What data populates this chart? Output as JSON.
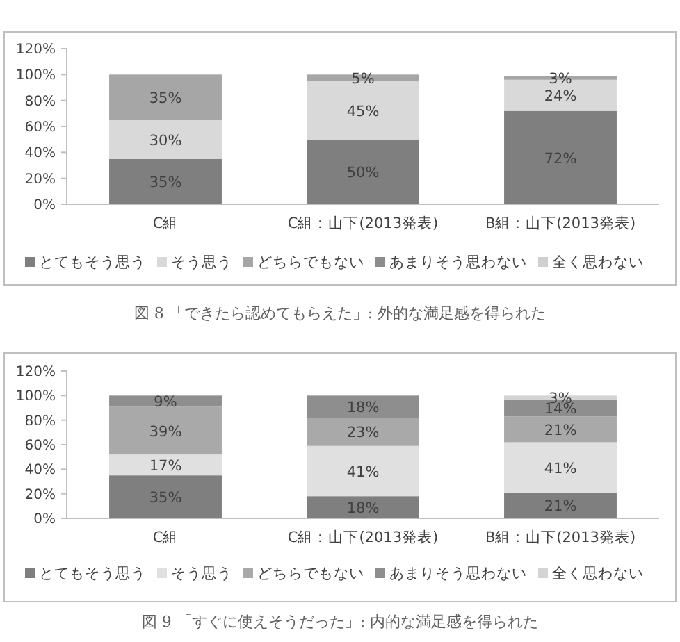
{
  "chart_data": [
    {
      "type": "bar",
      "stacked": true,
      "legend": "bottom",
      "grid": false,
      "categories": [
        "C組",
        "C組：山下(2013発表)",
        "B組：山下(2013発表)"
      ],
      "ylim": [
        0,
        120
      ],
      "yticks": [
        {
          "value": 0,
          "label": "0%"
        },
        {
          "value": 20,
          "label": "20%"
        },
        {
          "value": 40,
          "label": "40%"
        },
        {
          "value": 60,
          "label": "60%"
        },
        {
          "value": 80,
          "label": "80%"
        },
        {
          "value": 100,
          "label": "100%"
        },
        {
          "value": 120,
          "label": "120%"
        }
      ],
      "series": [
        {
          "name": "とてもそう思う",
          "color": "#7f7f7f",
          "values": [
            35,
            50,
            72
          ],
          "value_labels": [
            "35%",
            "50%",
            "72%"
          ]
        },
        {
          "name": "そう思う",
          "color": "#d9d9d9",
          "values": [
            30,
            45,
            24
          ],
          "value_labels": [
            "30%",
            "45%",
            "24%"
          ]
        },
        {
          "name": "どちらでもない",
          "color": "#a6a6a6",
          "values": [
            35,
            5,
            3
          ],
          "value_labels": [
            "35%",
            "5%",
            "3%"
          ]
        },
        {
          "name": "あまりそう思わない",
          "color": "#8c8c8c",
          "values": [
            null,
            null,
            null
          ]
        },
        {
          "name": "全く思わない",
          "color": "#d0d0d0",
          "values": [
            null,
            null,
            null
          ]
        }
      ],
      "annotations": [
        "図 8 「できたら認めてもらえた」: 外的な満足感を得られた"
      ]
    },
    {
      "type": "bar",
      "stacked": true,
      "legend": "bottom",
      "grid": false,
      "categories": [
        "C組",
        "C組：山下(2013発表)",
        "B組：山下(2013発表)"
      ],
      "ylim": [
        0,
        120
      ],
      "yticks": [
        {
          "value": 0,
          "label": "0%"
        },
        {
          "value": 20,
          "label": "20%"
        },
        {
          "value": 40,
          "label": "40%"
        },
        {
          "value": 60,
          "label": "60%"
        },
        {
          "value": 80,
          "label": "80%"
        },
        {
          "value": 100,
          "label": "100%"
        },
        {
          "value": 120,
          "label": "120%"
        }
      ],
      "series": [
        {
          "name": "とてもそう思う",
          "color": "#7f7f7f",
          "values": [
            35,
            18,
            21
          ],
          "value_labels": [
            "35%",
            "18%",
            "21%"
          ]
        },
        {
          "name": "そう思う",
          "color": "#e0e0e0",
          "values": [
            17,
            41,
            41
          ],
          "value_labels": [
            "17%",
            "41%",
            "41%"
          ]
        },
        {
          "name": "どちらでもない",
          "color": "#a9a9a9",
          "values": [
            39,
            23,
            21
          ],
          "value_labels": [
            "39%",
            "23%",
            "21%"
          ]
        },
        {
          "name": "あまりそう思わない",
          "color": "#8e8e8e",
          "values": [
            9,
            18,
            14
          ],
          "value_labels": [
            "9%",
            "18%",
            "14%"
          ]
        },
        {
          "name": "全く思わない",
          "color": "#d4d4d4",
          "values": [
            null,
            null,
            3
          ],
          "value_labels": [
            null,
            null,
            "3%"
          ]
        }
      ],
      "annotations": [
        "図 9 「すぐに使えそうだった」: 内的な満足感を得られた"
      ]
    }
  ]
}
